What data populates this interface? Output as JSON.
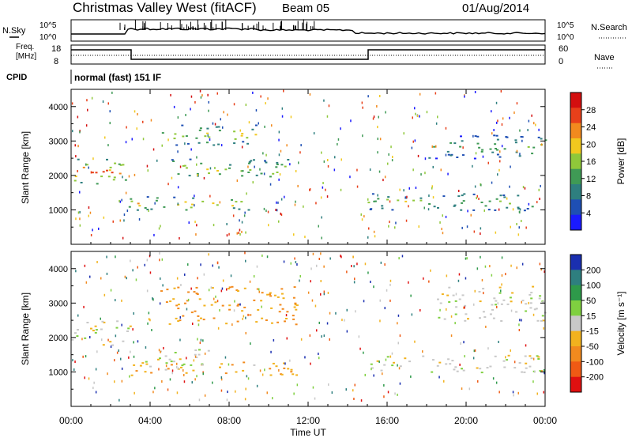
{
  "header": {
    "station": "Christmas Valley West (fitACF)",
    "beam": "Beam 05",
    "date": "01/Aug/2014"
  },
  "panels": {
    "nsky_label": "N.Sky",
    "nsky_left_ticks": [
      "10^5",
      "10^0"
    ],
    "nsearch_label": "N.Search",
    "nsearch_right_ticks": [
      "10^5",
      "10^0"
    ],
    "freq_label": [
      "Freq.",
      "[MHz]"
    ],
    "freq_ticks": [
      "18",
      "8"
    ],
    "nave_label": "Nave",
    "nave_ticks": [
      "60",
      "0"
    ],
    "cpid_label": "CPID",
    "cpid_value": "normal (fast) 151 IF"
  },
  "chart_data": [
    {
      "type": "heatmap",
      "quantity": "Power",
      "ylabel": "Slant Range [km]",
      "xlabel": "Time UT",
      "x_ticks": [
        "00:00",
        "04:00",
        "08:00",
        "12:00",
        "16:00",
        "20:00",
        "00:00"
      ],
      "y_ticks": [
        1000,
        2000,
        3000,
        4000
      ],
      "ylim": [
        0,
        4500
      ],
      "xlim_hours": [
        0,
        24
      ],
      "colorbar": {
        "label": "Power [dB]",
        "ticks": [
          4,
          8,
          12,
          16,
          20,
          24,
          28
        ],
        "range": [
          0,
          32
        ],
        "colors": [
          "#1a1aff",
          "#1e4fb4",
          "#2e7f7f",
          "#3f9a55",
          "#8fc83a",
          "#f2c81e",
          "#f28a1e",
          "#e8401a",
          "#d40f0f"
        ]
      },
      "scatter_bands": [
        {
          "t0": 0.0,
          "t1": 3.0,
          "r0": 1750,
          "r1": 2500,
          "peak": 26
        },
        {
          "t0": 2.8,
          "t1": 9.5,
          "r0": 1000,
          "r1": 1400,
          "peak": 22
        },
        {
          "t0": 4.5,
          "t1": 9.5,
          "r0": 2900,
          "r1": 3500,
          "peak": 18
        },
        {
          "t0": 5.0,
          "t1": 11.0,
          "r0": 1900,
          "r1": 2500,
          "peak": 18
        },
        {
          "t0": 15.0,
          "t1": 24.0,
          "r0": 1000,
          "r1": 1500,
          "peak": 16
        },
        {
          "t0": 18.0,
          "t1": 24.0,
          "r0": 2500,
          "r1": 3200,
          "peak": 14
        }
      ]
    },
    {
      "type": "heatmap",
      "quantity": "Velocity",
      "ylabel": "Slant Range [km]",
      "xlabel": "Time UT",
      "x_ticks": [
        "00:00",
        "04:00",
        "08:00",
        "12:00",
        "16:00",
        "20:00",
        "00:00"
      ],
      "y_ticks": [
        1000,
        2000,
        3000,
        4000
      ],
      "ylim": [
        0,
        4500
      ],
      "xlim_hours": [
        0,
        24
      ],
      "colorbar": {
        "label": "Velocity [m s⁻¹]",
        "ticks": [
          200,
          100,
          50,
          15,
          -15,
          -50,
          -100,
          -200
        ],
        "colors": [
          "#1a2fb0",
          "#2e7f7f",
          "#2e9a4a",
          "#7fd040",
          "#c8c8c8",
          "#f2b21e",
          "#f28a1e",
          "#ef5a14",
          "#e01010"
        ]
      },
      "scatter_bands": [
        {
          "t0": 0.0,
          "t1": 3.0,
          "r0": 1800,
          "r1": 2500,
          "vel": 0
        },
        {
          "t0": 3.0,
          "t1": 11.5,
          "r0": 900,
          "r1": 1300,
          "vel": -40
        },
        {
          "t0": 4.5,
          "t1": 11.5,
          "r0": 2400,
          "r1": 3500,
          "vel": -60
        },
        {
          "t0": 3.0,
          "t1": 7.0,
          "r0": 1200,
          "r1": 1700,
          "vel": 0
        },
        {
          "t0": 15.0,
          "t1": 24.0,
          "r0": 1000,
          "r1": 1500,
          "vel": 0
        },
        {
          "t0": 18.5,
          "t1": 24.0,
          "r0": 2500,
          "r1": 3500,
          "vel": 0
        }
      ]
    }
  ]
}
